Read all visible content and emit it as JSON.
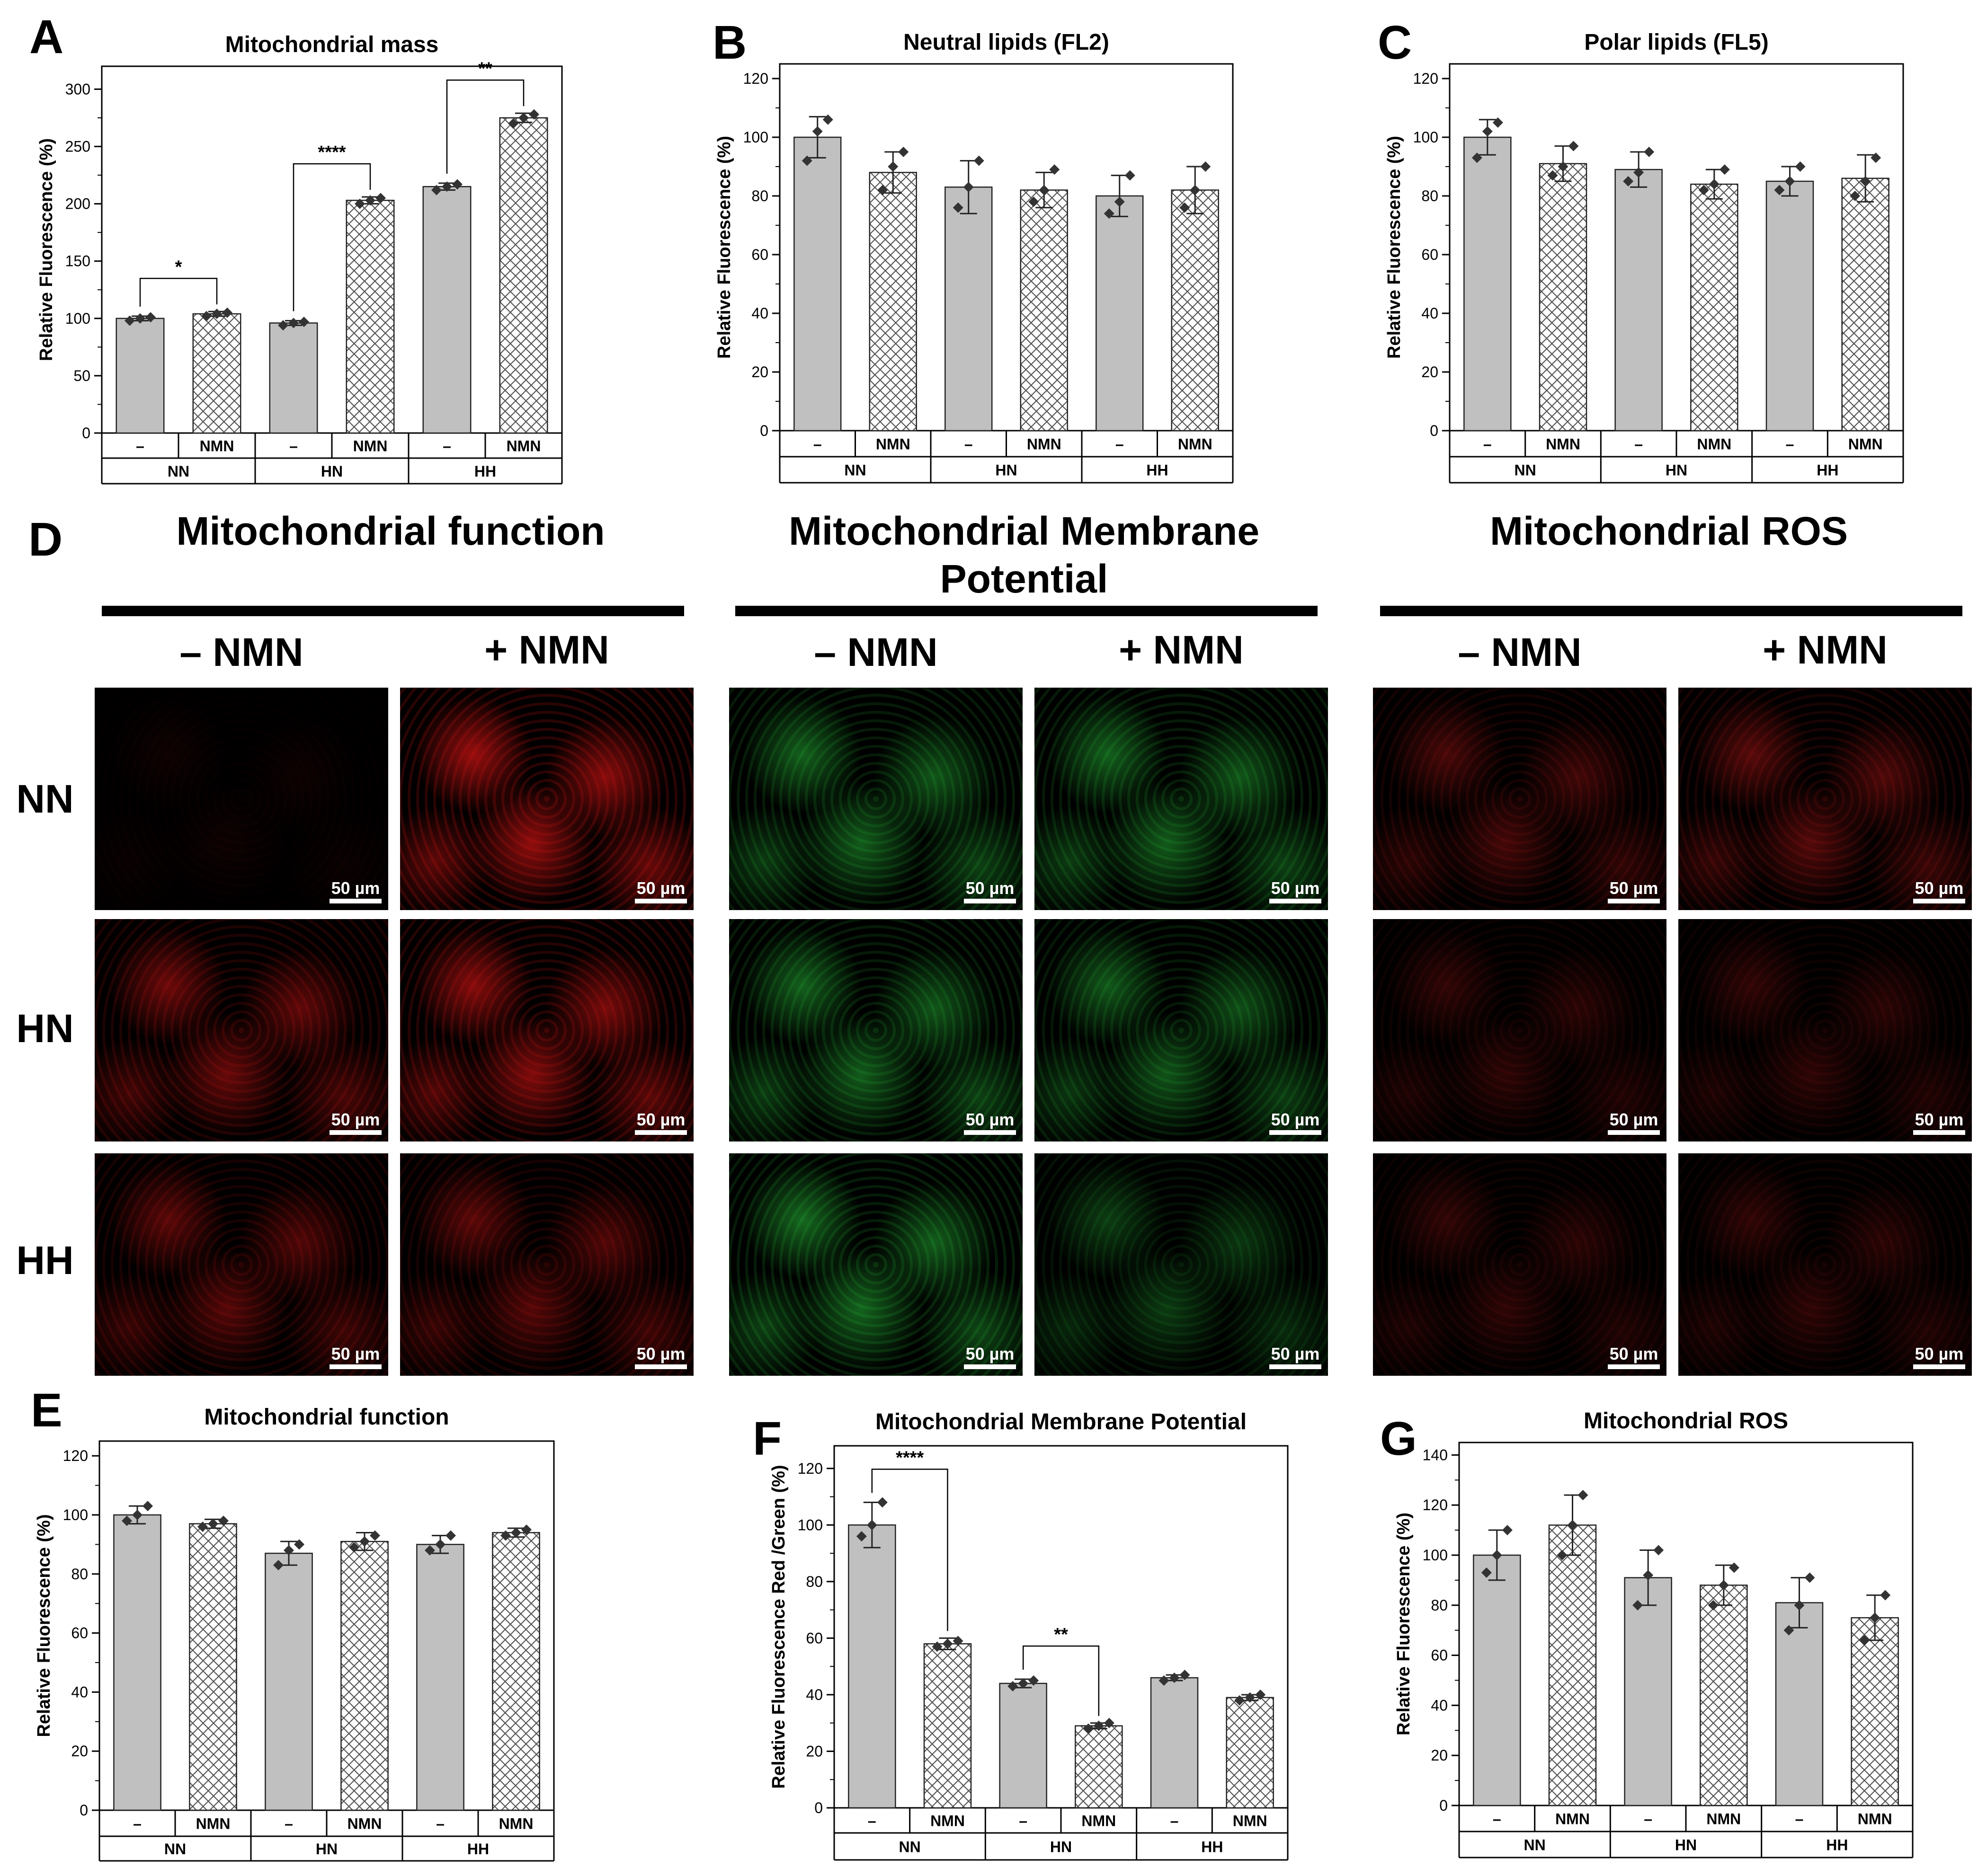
{
  "chart_data": [
    {
      "id": "A",
      "type": "bar",
      "panel_label": "A",
      "title": "Mitochondrial mass",
      "ylabel": "Relative Fluorescence (%)",
      "ylim": [
        0,
        320
      ],
      "yticks": [
        0,
        50,
        100,
        150,
        200,
        250,
        300
      ],
      "groups": [
        "NN",
        "HN",
        "HH"
      ],
      "treatments": [
        "–",
        "NMN"
      ],
      "values": [
        100,
        104,
        96,
        203,
        215,
        275
      ],
      "errors": [
        2,
        2,
        2,
        3,
        3,
        4
      ],
      "points": [
        [
          98,
          100,
          101
        ],
        [
          102,
          104,
          105
        ],
        [
          94,
          96,
          97
        ],
        [
          200,
          203,
          205
        ],
        [
          212,
          215,
          217
        ],
        [
          270,
          275,
          278
        ]
      ],
      "significance": [
        {
          "from": 0,
          "to": 1,
          "label": "*"
        },
        {
          "from": 2,
          "to": 3,
          "label": "****"
        },
        {
          "from": 4,
          "to": 5,
          "label": "**"
        }
      ]
    },
    {
      "id": "B",
      "type": "bar",
      "panel_label": "B",
      "title": "Neutral lipids (FL2)",
      "ylabel": "Relative Fluorescence (%)",
      "ylim": [
        0,
        125
      ],
      "yticks": [
        0,
        20,
        40,
        60,
        80,
        100,
        120
      ],
      "groups": [
        "NN",
        "HN",
        "HH"
      ],
      "treatments": [
        "–",
        "NMN"
      ],
      "values": [
        100,
        88,
        83,
        82,
        80,
        82
      ],
      "errors": [
        7,
        7,
        9,
        6,
        7,
        8
      ],
      "points": [
        [
          92,
          102,
          106
        ],
        [
          82,
          90,
          95
        ],
        [
          76,
          83,
          92
        ],
        [
          78,
          82,
          89
        ],
        [
          74,
          78,
          87
        ],
        [
          76,
          82,
          90
        ]
      ],
      "significance": []
    },
    {
      "id": "C",
      "type": "bar",
      "panel_label": "C",
      "title": "Polar lipids (FL5)",
      "ylabel": "Relative Fluorescence (%)",
      "ylim": [
        0,
        125
      ],
      "yticks": [
        0,
        20,
        40,
        60,
        80,
        100,
        120
      ],
      "groups": [
        "NN",
        "HN",
        "HH"
      ],
      "treatments": [
        "–",
        "NMN"
      ],
      "values": [
        100,
        91,
        89,
        84,
        85,
        86
      ],
      "errors": [
        6,
        6,
        6,
        5,
        5,
        8
      ],
      "points": [
        [
          93,
          102,
          105
        ],
        [
          87,
          90,
          97
        ],
        [
          85,
          88,
          95
        ],
        [
          82,
          84,
          89
        ],
        [
          82,
          85,
          90
        ],
        [
          80,
          85,
          93
        ]
      ],
      "significance": []
    },
    {
      "id": "E",
      "type": "bar",
      "panel_label": "E",
      "title": "Mitochondrial function",
      "ylabel": "Relative Fluorescence (%)",
      "ylim": [
        0,
        125
      ],
      "yticks": [
        0,
        20,
        40,
        60,
        80,
        100,
        120
      ],
      "groups": [
        "NN",
        "HN",
        "HH"
      ],
      "treatments": [
        "–",
        "NMN"
      ],
      "values": [
        100,
        97,
        87,
        91,
        90,
        94
      ],
      "errors": [
        3,
        1.5,
        4,
        3,
        3,
        1.5
      ],
      "points": [
        [
          98,
          100,
          103
        ],
        [
          96,
          97,
          98
        ],
        [
          83,
          88,
          90
        ],
        [
          89,
          91,
          93
        ],
        [
          88,
          90,
          93
        ],
        [
          93,
          94,
          95
        ]
      ],
      "significance": []
    },
    {
      "id": "F",
      "type": "bar",
      "panel_label": "F",
      "title": "Mitochondrial Membrane Potential",
      "ylabel": "Relative Fluorescence Red /Green (%)",
      "ylim": [
        0,
        128
      ],
      "yticks": [
        0,
        20,
        40,
        60,
        80,
        100,
        120
      ],
      "groups": [
        "NN",
        "HN",
        "HH"
      ],
      "treatments": [
        "–",
        "NMN"
      ],
      "values": [
        100,
        58,
        44,
        29,
        46,
        39
      ],
      "errors": [
        8,
        2,
        1.5,
        1,
        1,
        1
      ],
      "points": [
        [
          96,
          100,
          108
        ],
        [
          57,
          58,
          59
        ],
        [
          43,
          44,
          45
        ],
        [
          28,
          29,
          30
        ],
        [
          45,
          46,
          47
        ],
        [
          38,
          39,
          40
        ]
      ],
      "significance": [
        {
          "from": 0,
          "to": 1,
          "label": "****"
        },
        {
          "from": 2,
          "to": 3,
          "label": "**"
        }
      ]
    },
    {
      "id": "G",
      "type": "bar",
      "panel_label": "G",
      "title": "Mitochondrial ROS",
      "ylabel": "Relative Fluorescence (%)",
      "ylim": [
        0,
        145
      ],
      "yticks": [
        0,
        20,
        40,
        60,
        80,
        100,
        120,
        140
      ],
      "groups": [
        "NN",
        "HN",
        "HH"
      ],
      "treatments": [
        "–",
        "NMN"
      ],
      "values": [
        100,
        112,
        91,
        88,
        81,
        75
      ],
      "errors": [
        10,
        12,
        11,
        8,
        10,
        9
      ],
      "points": [
        [
          93,
          100,
          110
        ],
        [
          100,
          112,
          124
        ],
        [
          80,
          92,
          102
        ],
        [
          80,
          88,
          95
        ],
        [
          70,
          80,
          91
        ],
        [
          66,
          75,
          84
        ]
      ],
      "significance": []
    }
  ],
  "figure_d": {
    "panel_label": "D",
    "sections": [
      {
        "title": "Mitochondrial function",
        "minus": "– NMN",
        "plus": "+ NMN",
        "color": "#c81212"
      },
      {
        "title": "Mitochondrial Membrane Potential",
        "minus": "– NMN",
        "plus": "+ NMN",
        "color": "#28c23a"
      },
      {
        "title": "Mitochondrial ROS",
        "minus": "– NMN",
        "plus": "+ NMN",
        "color": "#b21515"
      }
    ],
    "rows": [
      "NN",
      "HN",
      "HH"
    ],
    "scale_label": "50 µm",
    "intensity": [
      [
        0.08,
        0.85,
        0.55,
        0.55,
        0.45,
        0.55
      ],
      [
        0.6,
        0.75,
        0.55,
        0.5,
        0.3,
        0.3
      ],
      [
        0.5,
        0.5,
        0.6,
        0.35,
        0.3,
        0.3
      ]
    ]
  }
}
